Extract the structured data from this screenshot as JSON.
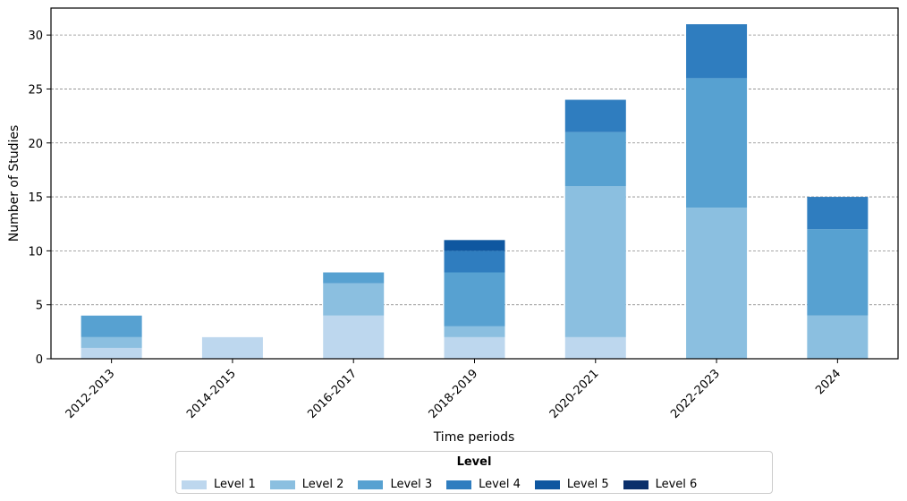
{
  "chart_data": {
    "type": "bar",
    "stacked": true,
    "xlabel": "Time periods",
    "ylabel": "Number of Studies",
    "ylim": [
      0,
      32.5
    ],
    "yticks": [
      0,
      5,
      10,
      15,
      20,
      25,
      30
    ],
    "grid": "horizontal-dashed",
    "categories": [
      "2012-2013",
      "2014-2015",
      "2016-2017",
      "2018-2019",
      "2020-2021",
      "2022-2023",
      "2024"
    ],
    "legend_title": "Level",
    "legend_position": "bottom",
    "series": [
      {
        "name": "Level 1",
        "color": "#bdd7ee",
        "values": [
          1,
          2,
          4,
          2,
          2,
          0,
          0
        ]
      },
      {
        "name": "Level 2",
        "color": "#8bbfe0",
        "values": [
          1,
          0,
          3,
          1,
          14,
          14,
          4
        ]
      },
      {
        "name": "Level 3",
        "color": "#57a1d1",
        "values": [
          2,
          0,
          1,
          5,
          5,
          12,
          8
        ]
      },
      {
        "name": "Level 4",
        "color": "#2f7dbf",
        "values": [
          0,
          0,
          0,
          2,
          3,
          5,
          3
        ]
      },
      {
        "name": "Level 5",
        "color": "#0f57a0",
        "values": [
          0,
          0,
          0,
          1,
          0,
          0,
          0
        ]
      },
      {
        "name": "Level 6",
        "color": "#0a2f6b",
        "values": [
          0,
          0,
          0,
          0,
          0,
          0,
          0
        ]
      }
    ]
  }
}
